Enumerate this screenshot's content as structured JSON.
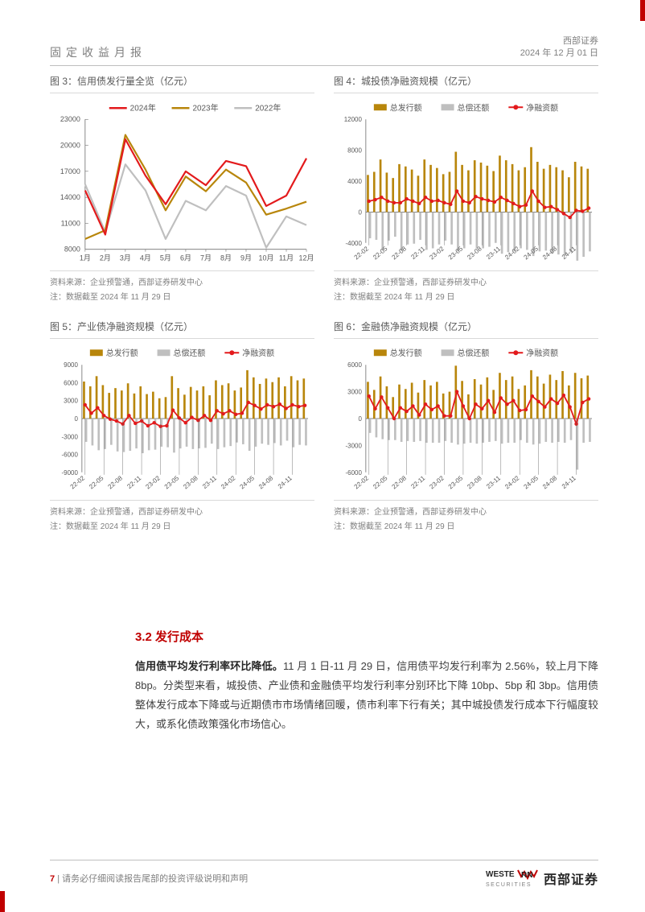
{
  "header": {
    "title": "固定收益月报",
    "company": "西部证券",
    "date": "2024 年 12 月 01 日"
  },
  "charts": {
    "c3": {
      "title": "图 3：信用债发行量全览（亿元）",
      "type": "line",
      "legend": [
        "2024年",
        "2023年",
        "2022年"
      ],
      "legend_colors": [
        "#e31a1c",
        "#b8860b",
        "#bfbfbf"
      ],
      "x_labels": [
        "1月",
        "2月",
        "3月",
        "4月",
        "5月",
        "6月",
        "7月",
        "8月",
        "9月",
        "10月",
        "11月",
        "12月"
      ],
      "ylim": [
        8000,
        23000
      ],
      "ytick_step": 3000,
      "series": {
        "2024": [
          14800,
          9700,
          20700,
          16500,
          13200,
          17000,
          15400,
          18200,
          17600,
          13000,
          14200,
          18500
        ],
        "2023": [
          9200,
          10200,
          21200,
          17200,
          12500,
          16400,
          14700,
          17200,
          15700,
          12000,
          12700,
          13500
        ],
        "2022": [
          15500,
          10000,
          17800,
          14800,
          9200,
          13600,
          12500,
          15300,
          14200,
          8200,
          11800,
          10800
        ]
      },
      "background_color": "#ffffff",
      "axis_color": "#7f7f7f",
      "tick_fontsize": 9,
      "source": "资料来源：企业预警通，西部证券研发中心",
      "note": "注：数据截至 2024 年 11 月 29 日"
    },
    "c4": {
      "title": "图 4：城投债净融资规模（亿元）",
      "type": "bar-line",
      "legend": [
        "总发行额",
        "总偿还额",
        "净融资额"
      ],
      "legend_colors": [
        "#b8860b",
        "#bfbfbf",
        "#e31a1c"
      ],
      "x_labels": [
        "22-02",
        "22-05",
        "22-08",
        "22-11",
        "23-02",
        "23-05",
        "23-08",
        "23-11",
        "24-02",
        "24-05",
        "24-08",
        "24-11"
      ],
      "ylim": [
        -4000,
        12000
      ],
      "ytick_step": 4000,
      "n_bars": 36,
      "issue": [
        4800,
        5200,
        6800,
        5100,
        4400,
        6200,
        5900,
        5500,
        4700,
        6800,
        6100,
        5700,
        4900,
        5200,
        7800,
        6100,
        5400,
        6700,
        6400,
        6000,
        5300,
        7300,
        6700,
        6200,
        5400,
        5800,
        8400,
        6500,
        5600,
        6100,
        5800,
        5400,
        4500,
        6500,
        5900,
        5600
      ],
      "repay": [
        3400,
        3600,
        4900,
        3700,
        3200,
        5000,
        4200,
        4100,
        3600,
        4900,
        4700,
        4200,
        3700,
        4200,
        5100,
        4700,
        4200,
        4700,
        4700,
        4500,
        4000,
        5400,
        5200,
        5100,
        4700,
        4900,
        5700,
        5100,
        5000,
        5400,
        5500,
        5600,
        5200,
        6300,
        5800,
        5100
      ],
      "net": [
        1400,
        1600,
        1900,
        1400,
        1200,
        1200,
        1700,
        1400,
        1100,
        1900,
        1400,
        1500,
        1200,
        1000,
        2700,
        1400,
        1200,
        2000,
        1700,
        1500,
        1300,
        1900,
        1500,
        1100,
        700,
        900,
        2700,
        1400,
        600,
        700,
        300,
        -200,
        -700,
        200,
        100,
        500
      ],
      "background_color": "#ffffff",
      "axis_color": "#7f7f7f",
      "tick_fontsize": 8,
      "source": "资料来源：企业预警通，西部证券研发中心",
      "note": "注：数据截至 2024 年 11 月 29 日"
    },
    "c5": {
      "title": "图 5：产业债净融资规模（亿元）",
      "type": "bar-line",
      "legend": [
        "总发行额",
        "总偿还额",
        "净融资额"
      ],
      "legend_colors": [
        "#b8860b",
        "#bfbfbf",
        "#e31a1c"
      ],
      "x_labels": [
        "22-02",
        "22-05",
        "22-08",
        "22-11",
        "23-02",
        "23-05",
        "23-08",
        "23-11",
        "24-02",
        "24-05",
        "24-08",
        "24-11"
      ],
      "ylim": [
        -9000,
        9000
      ],
      "ytick_step": 3000,
      "n_bars": 36,
      "issue": [
        6200,
        5400,
        7100,
        5600,
        4300,
        5100,
        4700,
        5900,
        4200,
        5400,
        4100,
        4500,
        3400,
        3600,
        7100,
        5100,
        4000,
        5300,
        4700,
        5400,
        3900,
        6400,
        5600,
        5900,
        4700,
        5200,
        8100,
        6900,
        5800,
        6700,
        6100,
        6900,
        5400,
        7100,
        6400,
        6700
      ],
      "repay": [
        3900,
        4500,
        5300,
        5100,
        4400,
        5500,
        5600,
        5400,
        5000,
        5800,
        5300,
        5200,
        4700,
        4800,
        5700,
        5000,
        4700,
        5100,
        5000,
        4900,
        4200,
        5100,
        4800,
        4600,
        4000,
        4300,
        5400,
        4700,
        4200,
        4400,
        4100,
        4500,
        3700,
        4800,
        4400,
        4500
      ],
      "net": [
        2300,
        900,
        1800,
        500,
        -100,
        -400,
        -900,
        500,
        -800,
        -400,
        -1200,
        -700,
        -1300,
        -1200,
        1400,
        100,
        -700,
        200,
        -300,
        500,
        -300,
        1300,
        800,
        1300,
        700,
        900,
        2700,
        2200,
        1600,
        2300,
        2000,
        2400,
        1700,
        2300,
        2000,
        2200
      ],
      "background_color": "#ffffff",
      "axis_color": "#7f7f7f",
      "tick_fontsize": 8,
      "source": "资料来源：企业预警通，西部证券研发中心",
      "note": "注：数据截至 2024 年 11 月 29 日"
    },
    "c6": {
      "title": "图 6：金融债净融资规模（亿元）",
      "type": "bar-line",
      "legend": [
        "总发行额",
        "总偿还额",
        "净融资额"
      ],
      "legend_colors": [
        "#b8860b",
        "#bfbfbf",
        "#e31a1c"
      ],
      "x_labels": [
        "22-02",
        "22-05",
        "22-08",
        "22-11",
        "23-02",
        "23-05",
        "23-08",
        "23-11",
        "24-02",
        "24-05",
        "24-08",
        "24-11"
      ],
      "ylim": [
        -6000,
        6000
      ],
      "ytick_step": 3000,
      "n_bars": 36,
      "issue": [
        4100,
        3200,
        4700,
        3600,
        2400,
        3800,
        3300,
        4000,
        2900,
        4300,
        3700,
        4100,
        2800,
        3000,
        5900,
        4200,
        2700,
        4400,
        3800,
        4600,
        3200,
        5100,
        4300,
        4700,
        3300,
        3700,
        5400,
        4700,
        3900,
        4900,
        4300,
        5300,
        3700,
        5100,
        4500,
        4800
      ],
      "repay": [
        1600,
        2100,
        2300,
        2400,
        2400,
        2600,
        2500,
        2600,
        2500,
        2700,
        2700,
        2700,
        2500,
        2700,
        2900,
        2800,
        2700,
        2800,
        2700,
        2600,
        2500,
        2800,
        2700,
        2700,
        2400,
        2700,
        2900,
        2800,
        2600,
        2700,
        2600,
        2700,
        2400,
        5700,
        2700,
        2600
      ],
      "net": [
        2500,
        1100,
        2400,
        1200,
        0,
        1200,
        800,
        1400,
        400,
        1600,
        1000,
        1400,
        300,
        300,
        3000,
        1400,
        0,
        1600,
        1100,
        2000,
        700,
        2300,
        1600,
        2000,
        900,
        1000,
        2500,
        1900,
        1300,
        2200,
        1700,
        2600,
        1300,
        -600,
        1800,
        2200
      ],
      "background_color": "#ffffff",
      "axis_color": "#7f7f7f",
      "tick_fontsize": 8,
      "source": "资料来源：企业预警通，西部证券研发中心",
      "note": "注：数据截至 2024 年 11 月 29 日"
    }
  },
  "body": {
    "section_num": "3.2",
    "section_title": "发行成本",
    "lead_bold": "信用债平均发行利率环比降低。",
    "paragraph": "11 月 1 日-11 月 29 日，信用债平均发行利率为 2.56%，较上月下降 8bp。分类型来看，城投债、产业债和金融债平均发行利率分别环比下降 10bp、5bp 和 3bp。信用债整体发行成本下降或与近期债市市场情绪回暖，债市利率下行有关；其中城投债发行成本下行幅度较大，或系化债政策强化市场信心。"
  },
  "footer": {
    "page_num": "7",
    "disclaimer": "请务必仔细阅读报告尾部的投资评级说明和声明",
    "logo_en": "WESTERN",
    "logo_sub": "SECURITIES",
    "logo_cn": "西部证券"
  },
  "colors": {
    "accent_red": "#c00000",
    "text_gray": "#595959",
    "light_gray": "#bfbfbf"
  }
}
